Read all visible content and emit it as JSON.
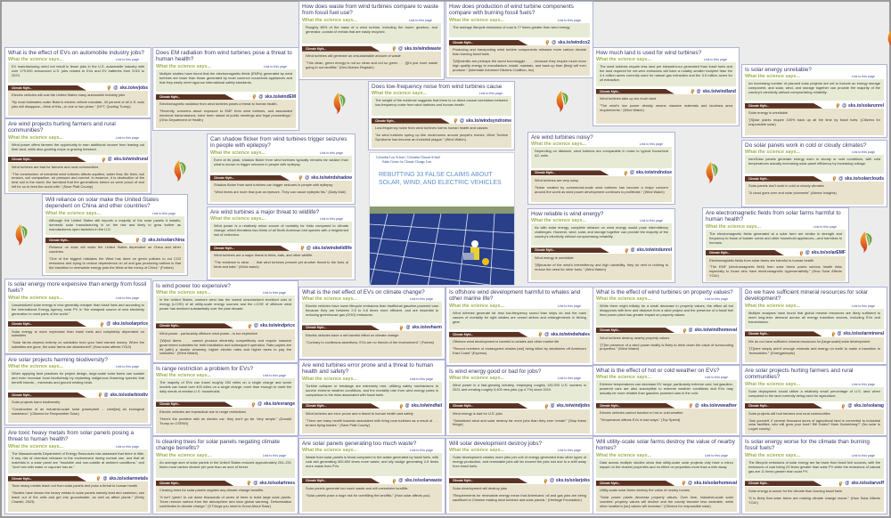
{
  "labels": {
    "science": "What the science says...",
    "link": "Link to this page",
    "myth": "Climate Myth..."
  },
  "cover": {
    "institutions": "Columbia Law School | Columbia Climate School",
    "center": "Sabin Center for Climate Change Law",
    "title": "REBUTTING 33 FALSE CLAIMS ABOUT SOLAR, WIND, AND ELECTRIC VEHICLES"
  },
  "colors": {
    "science_bg": "#e7ebd6",
    "myth_bg": "#e9e3cd",
    "myth_tab": "#5b3322",
    "science_label": "#a0ad4a",
    "card_border": "#aeb2d6"
  },
  "cards": [
    {
      "q": "What is the effect of EVs on automobile industry jobs?",
      "science": "EV manufacturing need not result in fewer jobs in the U.S. automobile industry with over 179,000 announced U.S. jobs related to EVs and EV batteries from 2015 to 2023.",
      "myth": "Electric vehicles will cost the United States many automobile industry jobs",
      "quote": "\"By most estimates under Biden's electric vehicle mandate, 40 percent of all U.S. auto jobs will disappear—think of this—in one or two years.\" (NYT, Quoting Trump)",
      "short": "sks.to/evjobs"
    },
    {
      "q": "Does EM radiation from wind turbines pose a threat to human health?",
      "science": "Multiple studies have found that the electromagnetic fields (EMFs) generated by wind turbines are lower than those generated by most common household appliances and that they easily meet rigorous international safety standards.",
      "myth": "Electromagnetic radiation from wind turbines poses a threat to human health.",
      "quote": "\"Recently, concerns about exposure to EMF from wind turbines, and associated electrical transmissions, have been raised at public meetings and legal proceedings.\" (Ohio Department of Health)",
      "short": "sks.to/windEM"
    },
    {
      "q": "Are wind projects hurting farmers and rural communities?",
      "science": "Wind power offers farmers the opportunity to earn additional income from leasing out their land, while also growing crops or grazing livestock.",
      "myth": "Wind turbines are bad for farmers and rural communities",
      "quote": "\"The construction of industrial wind turbines affects aquifers, water flow, tile lines, soil erosion, soil compaction, air pressure and current. In essence, it is destruction of the best soil in the world, the farmland that the generations before us were proud of and left for us to feed the world with.\" (Save Platt County)",
      "short": "sks.to/windrural"
    },
    {
      "q": "How does waste from wind turbines compare to waste from fossil fuel use?",
      "science": "Roughly 85% of the mass of a wind turbine, including the tower, gearbox, and generator, consist of metals that are easily recycled.",
      "myth": "Wind turbines will generate an unsustainable amount of waste",
      "quote": "\"This clean, green energy is not so clean and not so green . . . [i]t's just more waste going in our landfills.\" (Des Moines Register)",
      "short": "sks.to/windwaste"
    },
    {
      "q": "How does production of wind turbine components compare with burning fossil fuels?",
      "science": "The average lifecycle emissions of coal is 77 times greater than wind energy.",
      "myth": "Producing and transporting wind turbine components releases more carbon dioxide than burning fossil fuels",
      "quote": "\"[W]indmills are perhaps the worst boondoggle . . . , because they require much more high quality energy to manufacture, install, maintain, and back up than [they] will ever produce.\" (Interstate Informed Citizens Coalition, Inc)",
      "short": "sks.to/windco2"
    },
    {
      "q": "Does low-frequency noise from wind turbines cause",
      "science": "The weight of the evidence suggests that there is no direct causal correlation between low-frequency noise from wind turbines and human health.",
      "myth": "Low-frequency noise from wind turbines harms human health and causes",
      "quote": "\"As wind turbines spring up like mushrooms around people's homes, Wind Turbine Syndrome has become an industrial plague.\" (Wind Watch)",
      "short": "sks.to/windsyndrome"
    },
    {
      "q": "Can shadow flicker from wind turbines trigger seizures in people with epilepsy?",
      "science": "Even at its peak, shadow flicker from wind turbines typically remains far weaker than what is known to trigger seizures in people with epilepsy.",
      "myth": "Shadow flicker from wind turbines can trigger seizures in people with epilepsy",
      "quote": "\"Wind farms are more than just an eyesore. They can cause epileptic fits.\" (Daily Mail)",
      "short": "sks.to/windshadow"
    },
    {
      "q": "Are wind turbines a major threat to wildlife?",
      "science": "Wind power is a relatively minor source of mortality for birds compared to climate change, which threatens two-thirds of all North American bird species with a heightened risk of extinction.",
      "myth": "Wind turbines are a major threat to birds, bats, and other wildlife.",
      "quote": "\"The evidence is clear . . . that wind turbines present yet another threat to the lives of birds and bats.\" (Wind watch)",
      "short": "sks.to/windwildlife"
    },
    {
      "q": "Will reliance on solar make the United States dependent on China and other countries?",
      "science": "Although the United States still imports a majority of the solar panels it installs, domestic solar manufacturing is on the rise and likely to grow further as manufacturers open factories in the U.S.",
      "myth": "Reliance on solar will make the United States dependent on China and other countries.",
      "quote": "\"One of the biggest mistakes the West has done on green policies to cut CO2 emissions and trying to reduce dependence on oil and gas producing nations is that the transition to renewable energy puts the West at the mercy of China.\" (Forbes)",
      "short": "sks.to/solarchina"
    },
    {
      "q": "How much land is used for wind turbines?",
      "science": "The wind turbines require less land per kilowatt-hour generated than fossil fuels and the land required for net-zero emissions will have a notably smaller footprint than the 4.4 million acres currently used for natural gas extraction and the 3.5 million acres for oil extraction.",
      "myth": "Wind turbines take up too much land",
      "quote": "\"The wind's low power density means massive materials and land/sea area requirements.\" (Wind Watch)",
      "short": "sks.to/windland"
    },
    {
      "q": "Is solar energy unreliable?",
      "science": "An increasing number of planned solar projects are set to include an energy storage component, and solar, wind, and storage together can provide the majority of the country's electricity without compromising reliability.",
      "myth": "Solar energy is unreliable",
      "quote": "\"[S]olar plants require 100% back up all the time by fossil fuels. (Citizens for responsible solar)",
      "short": "sks.to/solarunrel"
    },
    {
      "q": "Do solar panels work in cold or cloudy climates?",
      "science": "hereSolar panels generate energy even in cloudy or cold conditions, with cold temperatures actually increasing solar panel efficiency by increasing voltage.",
      "myth": "Solar panels don't work in cold or cloudy climates",
      "quote": "\"A cloud goes over and solar plummets\" (Atomic Insights)",
      "short": "sks.to/solarclouds"
    },
    {
      "q": "Are wind turbines noisy?",
      "science": "Depending on distance, wind turbines are comparable in noise to typical household AC-units.",
      "myth": "Wind turbines are very noisy",
      "quote": "\"Noise created by commercial-scale wind turbines has become a major concern around the world as wind power development continues to proliferate.\" (Wind Watch)",
      "short": "sks.to/windnoise"
    },
    {
      "q": "How reliable is wind energy?",
      "science": "As with solar energy, complete reliance on wind energy would pose intermittency challenges. However, wind, solar, and storage together can provide the majority of the country's electricity without compromising reliability.",
      "myth": "Wind energy is unreliable",
      "quote": "\"[B]ecause of the wind's intermittency and high variability, they do next to nothing to reduce the need for other fuels.\" (Wind Watch)",
      "short": "sks.to/windunrel"
    },
    {
      "q": "Are electromagnetic fields from solar farms harmful to human health?",
      "science": "The electromagnetic fields generated at a solar farm are similar in strength and frequency to those of toaster ovens and other household appliances—and harmless to humans.",
      "myth": "Electromagnetic fields from solar farms are harmful to human health",
      "quote": "\"The EMF (electromagnetic field) from solar farms poses serious health risks especially to those who have electromagnetic hypersensitivity.\" (How Solar Affects YOU!)",
      "short": "sks.to/solarEMF"
    },
    {
      "q": "Is solar energy more expensive than energy from fossil fuels?",
      "science": "Unsubsidized solar energy is now generally cheaper than fossil fuels and according to the International Energy Agency, solar PV is \"the cheapest source of new electricity generation in most parts of the world.\"",
      "myth": "Solar energy is more expensive than fossil fuels and completely dependent on subsidies",
      "quote": "\"Solar farms depend entirely on subsidies from your hard earned money. When the subsidies are gone, the solar farms are abandoned!\" (How solar affects YOU!)",
      "short": "sks.to/solarprice"
    },
    {
      "q": "Is wind power too expensive?",
      "science": "In the United States, onshore wind has the lowest unsubsidized levelized cost of energy (LCOE) of all utility-scale energy sources and the LCOE of offshore wind power has declined substantially over the past decade.",
      "myth": "Wind power - particularly offshore wind power - is too expensive",
      "quote": "\"[W]ind farms . . . cannot produce electricity competitively and require massive government subsidies for both installation and subsequent operation. Rate payers are hit [with] a double whammy, higher electric rates and higher taxes to pay the subsidies.\" (Wind Watch)",
      "short": "sks.to/windprice"
    },
    {
      "q": "Are solar projects harming biodiversity?",
      "science": "When applying best practices for project design, large-scale solar farms can sustain and even increase local biodiversity by replanting indigenous flowering species that benefit insects, , mammals and ground nesting birds.",
      "myth": "Solar projects harm biodiversity",
      "quote": "\"Construction of an industrial-scale solar powerplant ... creat[es] an ecological wasteland.\" (Citizens for Responsible Solar)",
      "short": "sks.to/solarbiodiv"
    },
    {
      "q": "Is range restriction a problem for EVs?",
      "science": "The majority of EVs can travel roughly 200 miles on a single charge and some models can travel over 400 miles on a single charge, more than enough to meet the daily needs of median U.S. households.",
      "myth": "Electric vehicles are impractical due to range restrictions",
      "quote": "\"Here's the problem with an electric car: they don't go far. Very simple.\" (Donald Trump on CSPAN)",
      "short": "sks.to/evrange"
    },
    {
      "q": "Are toxic heavy metals from solar panels posing a threat to human health?",
      "science": "The Massachusetts Department of Energy Resources has assessed that there is little, if any, risk of chemical releases to the environment during normal use, and that all materials in a solar panel are \"insoluble and non-volatile at ambient conditions,\" and \"don't mix with water or vaporize into air.\"",
      "myth": "Toxic heavy metals leach out from solar panels and pose a threat to human health",
      "quote": "\"Studies have shown the heavy metals in solar panels namely lead and cadmium, can leach out of the cells and get into groundwater, as well as affect plants.\" (Emily Chantiri, 2023)",
      "short": "sks.to/solarmetals"
    },
    {
      "q": "Is clearing trees for solar panels negating climate change benefits?",
      "science": "An average acre of solar panels in the United States reduced approximately 204–231 times more carbon dioxide per year than an acre of forest.",
      "myth": "Clearing trees for solar panels negates any climate change benefits",
      "quote": "\"It isn't 'green' to cut down thousands of acres of trees to build large solar plants. Trees remove carbon from the atmosphere and slow global warming. Deforestation contributes to climate change.\" (5 Things you need to Know About Solar)",
      "short": "sks.to/solartrees"
    },
    {
      "q": "What is the net effect of EVs on climate change?",
      "science": "Electric vehicles have lower lifecycle emissions than traditional gasoline-powered cars because they are between 2.5 to 5.8 times more efficient, and are essential to reducing greenhouse gas (GHG) emissions.",
      "myth": "Electric vehicles have a net harmful effect on climate change",
      "quote": "\"Contrary to vociferous assertions, EVs are no friends of the environment.\" (Forbes)",
      "short": "sks.to/evharm"
    },
    {
      "q": "Is offshore wind development harmful to whales and other marine life?",
      "science": "Wind turbines generate far less low-frequency sound than ships do and the main causes of mortality for right whales are vessel strikes and entanglements in fishing gear.",
      "myth": "Offshore wind development is harmful to whales and other marine life",
      "quote": "\"Record numbers of endangered whales [are] being killed by windfarms off America's East Coast\" (Express)",
      "short": "sks.to/windwhales"
    },
    {
      "q": "Are wind turbines error prone and a threat to human health and safety?",
      "science": "Turbine collapse or breakage are extremely rare, utilizing safety mechanisms to survive extreme weather conditions, and the mortality rate from wind energy pales in comparison to the risks associated with fossil fuels.",
      "myth": "Wind turbines are error prone and a threat to human health and safety",
      "quote": "\"There are many health hazards associated with living near turbines as a result of . . . broken flying blades.\" (Save Platt County)",
      "short": "sks.to/windfail"
    },
    {
      "q": "Is wind energy good or bad for jobs?",
      "science": "Wind power is a fast-growing industry, employing roughly 120,000 U.S. workers in 2021 and creating roughly 5,400 new jobs (up 4.7%) since 2019.",
      "myth": "Wind energy is bad for U.S. jobs",
      "quote": "\"Subsidized wind and solar destroy far more jobs than they ever 'create'\" (Stop these things)",
      "short": "sks.to/windjobs"
    },
    {
      "q": "Are solar panels generating too much waste?",
      "science": "Waste from solar panels is trivial compared to the waste generated by fossil fuels, with coal ash generating 300-800 times more waste, and oily sludge generating 2-5 times more waste than PVs.",
      "myth": "Solar panels generate too much waste and will overwhelm landfills",
      "quote": "\"Solar panels pose a huge risk for overfilling the landfills.\" (How solar affects you)",
      "short": "sks.to/solarwaste"
    },
    {
      "q": "Will solar development destroy jobs?",
      "science": "Solar development creates more jobs per unit of energy generated than other types of energy production, and renewable jobs will far exceed the jobs lost due to a shift away from fossil fuels.",
      "myth": "Solar development will destroy jobs",
      "quote": "\"Requirements for renewable energy mean that Americans' oil and gas jobs are being sacrificed to Chinese making wind turbines and solar panels.\" (Heritage Foundation)",
      "short": "sks.to/solarjobs"
    },
    {
      "q": "What is the effect of wind turbines on property values?",
      "science": "While there might initially be a small decrease in property values, the effect all but disappears with time and distance from a wind project and the presence of a fossil fuel fired power plant has greater impact on property values.",
      "myth": "Wind turbines destroy nearby property values",
      "quote": "\"[T]he presence of a wind power facility is likely to drive down the value of surrounding properties.\" (Wind Watch)",
      "short": "sks.to/windhomeval"
    },
    {
      "q": "Do we have sufficient mineral resources for solar development?",
      "science": "Multiple analyses have found that global mineral resources are likely sufficient to meet long-term demand across all energy transition sectors, including EVs and transmission.",
      "myth": "We do not have sufficient mineral resources for [large-scale] solar development",
      "quote": "\"[T]here simply aren't enough minerals and energy on earth to make a transition to 'renewables.'\" (Energyskeptic)",
      "short": "sks.to/solarmineral"
    },
    {
      "q": "What is the effect of hot or cold weather on EVs?",
      "science": "Extreme temperatures can decrease EV range, particularly extreme cold, but gasoline-powered cars are also susceptible to extreme weather conditions and EVs may actually be more reliable than gasoline-powered cars in the cold.",
      "myth": "Electric vehicles cannot function in hot or cold weather",
      "quote": "\"Temperature affects EVs in bad ways.\" (Top Speed)",
      "short": "sks.to/evweather"
    },
    {
      "q": "Are solar projects hurting farmers and rural communities?",
      "science": "Solar deployment would utilize a relatively small percentage of U.S. land when compared to the land currently being used for agriculture.",
      "myth": "Solar projects will hurt farmers and rural communities",
      "quote": "\"Ask yourself, if several thousand acres of agricultural land is converted to industrial solar facilities, who will grow your food? Bill Gates? Mark Zuckerberg?\" (No solar in Logan county)",
      "short": "sks.to/solarag"
    },
    {
      "q": "Will utility-scale solar farms destroy the value of nearby homes?",
      "science": "Data across multiple studies show that utility-scale solar projects only have a minor impact on the closest properties and no effect on properties more than a mile away.",
      "myth": "Utility-scale solar farms destroy the value of nearby homes",
      "quote": "\"Solar power plants decrease property values. Over time, industrial-scale solar counties' property values will decline and the county become less desirable, while other location's [sic] values will increase.\" (Citizens for responsible solar)",
      "short": "sks.to/solarhomeval"
    },
    {
      "q": "Is solar energy worse for the climate than burning fossil fuels?",
      "science": "The lifecycle emissions of solar energy are far lower than fossil fuel sources, with the emissions of coal being 23 times greater than solar PV while the emissions of natural gas are 11 times greater than solar PV.",
      "myth": "Solar energy is worse for the climate than burning fossil fuels",
      "quote": "\"It is likely that solar farms are making climate change worse.\" (How Solar Affects YOU!)",
      "short": "sks.to/solarvsff"
    }
  ]
}
